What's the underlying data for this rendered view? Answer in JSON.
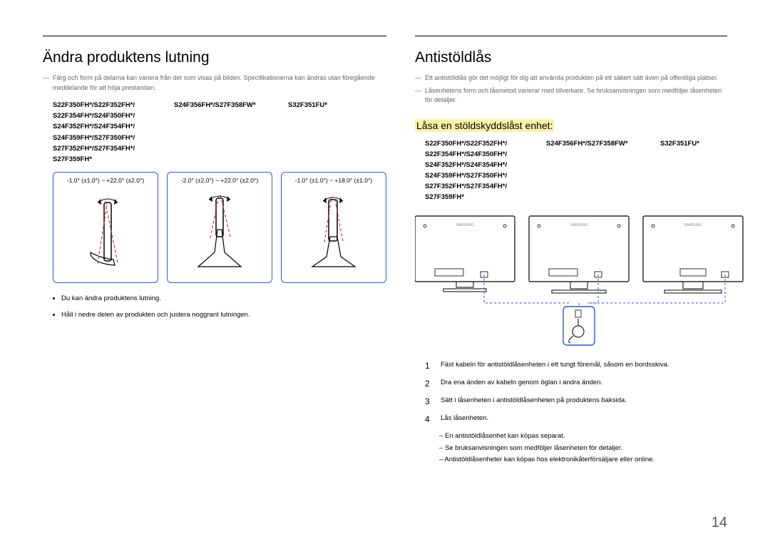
{
  "left": {
    "heading": "Ändra produktens lutning",
    "note": "Färg och form på delarna kan variera från det som visas på bilden. Specifikationerna kan ändras utan föregående meddelande för att höja prestandan.",
    "model_cols": [
      "S22F350FH*/S22F352FH*/\nS22F354FH*/S24F350FH*/\nS24F352FH*/S24F354FH*/\nS24F359FH*/S27F350FH*/\nS27F352FH*/S27F354FH*/\nS27F359FH*",
      "S24F356FH*/S27F358FW*",
      "S32F351FU*"
    ],
    "tilt": [
      "-1.0° (±1.0°) ~ +22.0° (±2.0°)",
      "-2.0° (±2.0°) ~ +22.0° (±2.0°)",
      "-1.0° (±1.0°) ~ +18.0° (±1.0°)"
    ],
    "bullets": [
      "Du kan ändra produktens lutning.",
      "Håll i nedre delen av produkten och justera noggrant lutningen."
    ]
  },
  "right": {
    "heading": "Antistöldlås",
    "notes": [
      "Ett antistöldlås gör det möjligt för dig att använda produkten på ett säkert sätt även på offentliga platser.",
      "Låsenhetens form och låsmetod varierar med tillverkare. Se bruksanvisningen som medföljer låsenheten för detaljer."
    ],
    "subheading": "Låsa en stöldskyddslåst enhet:",
    "model_cols": [
      "S22F350FH*/S22F352FH*/\nS22F354FH*/S24F350FH*/\nS24F352FH*/S24F354FH*/\nS24F359FH*/S27F350FH*/\nS27F352FH*/S27F354FH*/\nS27F359FH*",
      "S24F356FH*/S27F358FW*",
      "S32F351FU*"
    ],
    "steps": [
      "Fäst kabeln för antistöldlåsenheten i ett tungt föremål, såsom en bordsskiva.",
      "Dra ena änden av kabeln genom öglan i andra änden.",
      "Sätt i låsenheten i antistöldlåsenheten på produktens baksida.",
      "Lås låsenheten."
    ],
    "sub": [
      "En antistöldlåsenhet kan köpas separat.",
      "Se bruksanvisningen som medföljer låsenheten för detaljer.",
      "Antistöldlåsenheter kan köpas hos elektronikåterförsäljare eller online."
    ]
  },
  "page_number": "14",
  "colors": {
    "accent": "#2a5ad6",
    "highlight": "#fff1a8",
    "tilt_line": "#d93838"
  }
}
